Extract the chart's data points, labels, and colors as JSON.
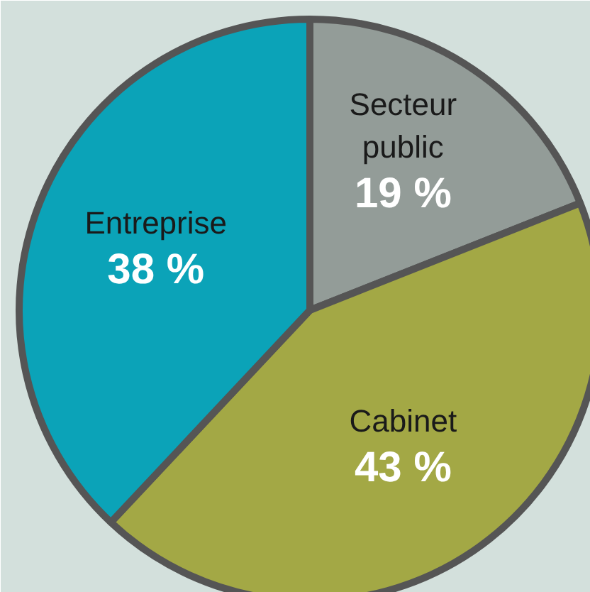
{
  "chart_data": {
    "type": "pie",
    "categories": [
      "Secteur public",
      "Cabinet",
      "Entreprise"
    ],
    "values": [
      19,
      43,
      38
    ],
    "colors": [
      "#939c98",
      "#a3a845",
      "#0ba3b8"
    ],
    "value_labels": [
      "19 %",
      "43 %",
      "38 %"
    ]
  }
}
